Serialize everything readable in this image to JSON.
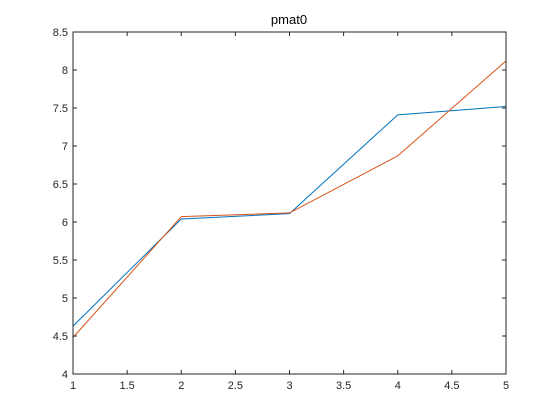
{
  "chart_data": {
    "type": "line",
    "title": "pmat0",
    "xlabel": "",
    "ylabel": "",
    "xlim": [
      1,
      5
    ],
    "ylim": [
      4,
      8.5
    ],
    "xticks": [
      1,
      1.5,
      2,
      2.5,
      3,
      3.5,
      4,
      4.5,
      5
    ],
    "xtick_labels": [
      "1",
      "1.5",
      "2",
      "2.5",
      "3",
      "3.5",
      "4",
      "4.5",
      "5"
    ],
    "yticks": [
      4,
      4.5,
      5,
      5.5,
      6,
      6.5,
      7,
      7.5,
      8,
      8.5
    ],
    "ytick_labels": [
      "4",
      "4.5",
      "5",
      "5.5",
      "6",
      "6.5",
      "7",
      "7.5",
      "8",
      "8.5"
    ],
    "grid": false,
    "box": true,
    "x": [
      1,
      2,
      3,
      4,
      5
    ],
    "series": [
      {
        "values": [
          4.63,
          6.04,
          6.11,
          7.41,
          7.52
        ],
        "color": "#0072BD"
      },
      {
        "values": [
          4.48,
          6.07,
          6.12,
          6.87,
          8.12
        ],
        "color": "#D95319"
      }
    ]
  }
}
